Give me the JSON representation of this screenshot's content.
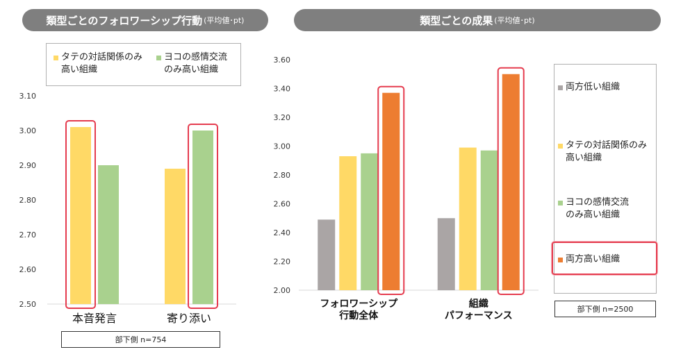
{
  "left": {
    "header_main": "類型ごとのフォロワーシップ行動",
    "header_sub": "(平均値･pt)",
    "legend": [
      {
        "label": "タテの対話関係のみ\n高い組織",
        "color": "#ffd966"
      },
      {
        "label": "ヨコの感情交流\nのみ高い組織",
        "color": "#a9d18e"
      }
    ],
    "sample_note": "部下側  n=754"
  },
  "right": {
    "header_main": "類型ごとの成果",
    "header_sub": "(平均値･pt)",
    "legend": [
      {
        "label": "両方低い組織",
        "color": "#aaa5a5"
      },
      {
        "label": "タテの対話関係のみ\n高い組織",
        "color": "#ffd966"
      },
      {
        "label": "ヨコの感情交流\nのみ高い組織",
        "color": "#a9d18e"
      },
      {
        "label": "両方高い組織",
        "color": "#ed7d31"
      }
    ],
    "sample_note": "部下側  n=2500"
  },
  "chart_data": [
    {
      "type": "bar",
      "title": "類型ごとのフォロワーシップ行動(平均値･pt)",
      "categories": [
        "本音発言",
        "寄り添い"
      ],
      "series": [
        {
          "name": "タテの対話関係のみ高い組織",
          "color": "#ffd966",
          "values": [
            3.01,
            2.89
          ]
        },
        {
          "name": "ヨコの感情交流のみ高い組織",
          "color": "#a9d18e",
          "values": [
            2.9,
            3.0
          ]
        }
      ],
      "ylim": [
        2.5,
        3.1
      ],
      "yticks": [
        "2.50",
        "2.60",
        "2.70",
        "2.80",
        "2.90",
        "3.00",
        "3.10"
      ],
      "grid": false,
      "legend": "top"
    },
    {
      "type": "bar",
      "title": "類型ごとの成果(平均値･pt)",
      "categories": [
        "フォロワーシップ\n行動全体",
        "組織\nパフォーマンス"
      ],
      "series": [
        {
          "name": "両方低い組織",
          "color": "#aaa5a5",
          "values": [
            2.49,
            2.5
          ]
        },
        {
          "name": "タテの対話関係のみ高い組織",
          "color": "#ffd966",
          "values": [
            2.93,
            2.99
          ]
        },
        {
          "name": "ヨコの感情交流のみ高い組織",
          "color": "#a9d18e",
          "values": [
            2.95,
            2.97
          ]
        },
        {
          "name": "両方高い組織",
          "color": "#ed7d31",
          "values": [
            3.37,
            3.5
          ]
        }
      ],
      "ylim": [
        2.0,
        3.6
      ],
      "yticks": [
        "2.00",
        "2.20",
        "2.40",
        "2.60",
        "2.80",
        "3.00",
        "3.20",
        "3.40",
        "3.60"
      ],
      "grid": false,
      "legend": "right"
    }
  ]
}
